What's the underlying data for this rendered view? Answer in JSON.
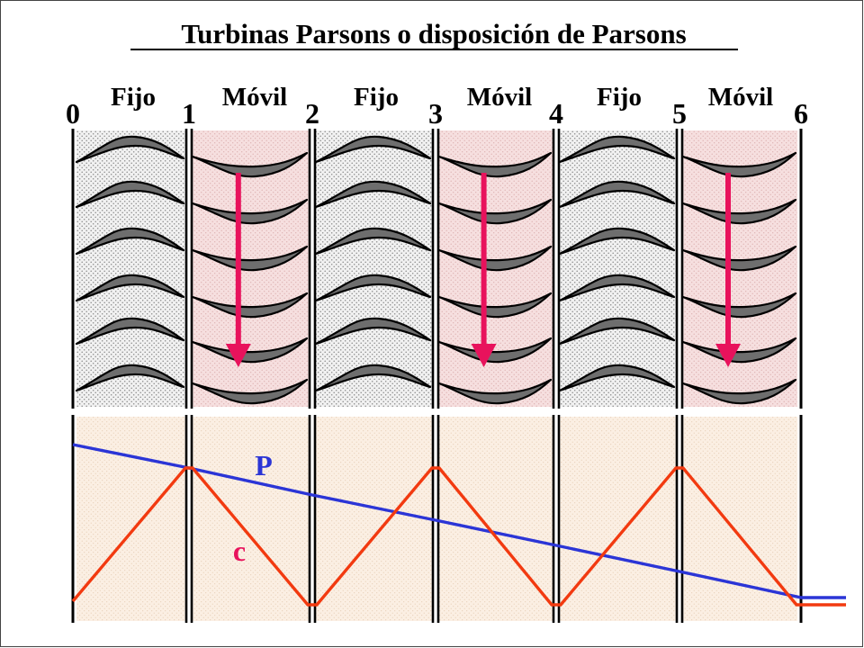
{
  "title": "Turbinas Parsons o disposición de Parsons",
  "stages": [
    {
      "label": "Fijo",
      "kind": "fixed"
    },
    {
      "label": "Móvil",
      "kind": "moving"
    },
    {
      "label": "Fijo",
      "kind": "fixed"
    },
    {
      "label": "Móvil",
      "kind": "moving"
    },
    {
      "label": "Fijo",
      "kind": "fixed"
    },
    {
      "label": "Móvil",
      "kind": "moving"
    }
  ],
  "planes": [
    "0",
    "1",
    "2",
    "3",
    "4",
    "5",
    "6"
  ],
  "curves": {
    "pressure": {
      "label": "P",
      "color": "#2b35d6",
      "trend": "decreasing through every stage"
    },
    "velocity": {
      "label": "c",
      "color": "#f23a10",
      "trend": "rises in fixed stages, falls in moving stages"
    }
  },
  "colors": {
    "fixed_fill": "#ededed",
    "moving_fill": "#f6dede",
    "bottom_fill": "#faeee2",
    "blade_fill": "#6e6e6e",
    "arrow": "#e8125c"
  },
  "icons": [
    "blade-profile-icon",
    "rotation-arrow-icon"
  ]
}
